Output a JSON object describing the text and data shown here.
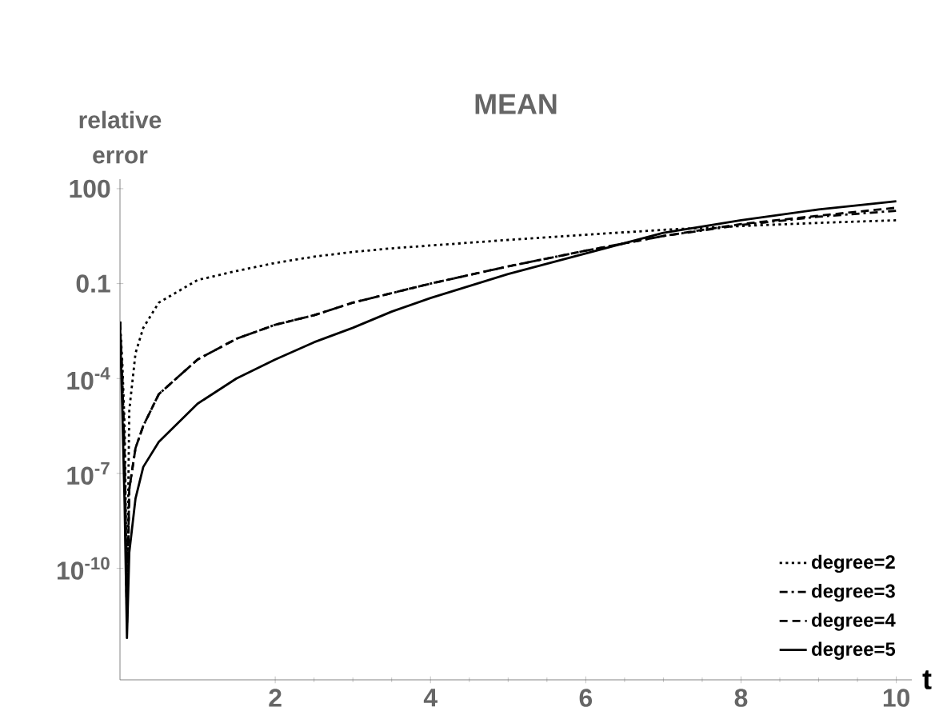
{
  "chart_data": {
    "type": "line",
    "title": "MEAN",
    "xlabel": "t",
    "ylabel": "relative error",
    "log": "y",
    "legend": "bottom right",
    "grid": false,
    "xlim": [
      0,
      10.2
    ],
    "ylim": [
      3e-14,
      200
    ],
    "xticks": [
      2,
      4,
      6,
      8,
      10
    ],
    "yticks": [
      100,
      0.1,
      {
        "value": 0.0001,
        "label": "10$^{-4}$"
      },
      {
        "value": 1e-07,
        "label": "10$^{-7}$"
      },
      {
        "value": 1e-10,
        "label": "10$^{-10}$"
      }
    ],
    "series": [
      {
        "name": "degree=2",
        "color": "#000000",
        "line_style": "dotted",
        "x": [
          0,
          0.03,
          0.06,
          0.09,
          0.12,
          0.2,
          0.3,
          0.5,
          1,
          1.5,
          2,
          2.5,
          3,
          3.5,
          4,
          5,
          6,
          7,
          8,
          9,
          10
        ],
        "values": [
          0.0063,
          0.00032,
          3.2e-06,
          1e-11,
          1e-05,
          0.00063,
          0.004,
          0.025,
          0.13,
          0.25,
          0.45,
          0.71,
          1,
          1.3,
          1.6,
          2.4,
          3.5,
          5,
          6.6,
          8.3,
          10
        ]
      },
      {
        "name": "degree=3",
        "color": "#000000",
        "line_style": "dashdot",
        "x": [
          0,
          0.03,
          0.06,
          0.09,
          0.12,
          0.2,
          0.3,
          0.5,
          1,
          1.5,
          2,
          2.5,
          3,
          3.5,
          4,
          5,
          6,
          7,
          8,
          9,
          10
        ],
        "values": [
          0.0063,
          0.0001,
          3.2e-07,
          3.2e-12,
          3.2e-08,
          6.3e-07,
          3.2e-06,
          3.2e-05,
          0.0004,
          0.0018,
          0.005,
          0.01,
          0.025,
          0.05,
          0.1,
          0.35,
          1.1,
          3.2,
          7.1,
          13,
          20
        ]
      },
      {
        "name": "degree=4",
        "color": "#000000",
        "line_style": "dashed",
        "x": [
          0,
          0.03,
          0.06,
          0.09,
          0.12,
          0.2,
          0.3,
          0.5,
          1,
          1.5,
          2,
          2.5,
          3,
          3.5,
          4,
          5,
          6,
          7,
          8,
          9,
          10
        ],
        "values": [
          0.0063,
          0.0001,
          3.2e-07,
          1.6e-12,
          3.2e-08,
          6.3e-07,
          3.2e-06,
          3.2e-05,
          0.0004,
          0.0018,
          0.005,
          0.01,
          0.025,
          0.05,
          0.1,
          0.35,
          1.1,
          3.2,
          7.6,
          14,
          25
        ]
      },
      {
        "name": "degree=5",
        "color": "#000000",
        "line_style": "solid",
        "x": [
          0,
          0.03,
          0.06,
          0.09,
          0.12,
          0.2,
          0.3,
          0.5,
          1,
          1.5,
          2,
          2.5,
          3,
          3.5,
          4,
          5,
          6,
          7,
          8,
          9,
          10
        ],
        "values": [
          0.0063,
          1e-05,
          1e-08,
          6.3e-13,
          3.2e-10,
          1.6e-08,
          1.6e-07,
          1e-06,
          1.6e-05,
          0.0001,
          0.0004,
          0.0014,
          0.004,
          0.013,
          0.035,
          0.2,
          0.9,
          4,
          10,
          22,
          40
        ]
      }
    ]
  }
}
